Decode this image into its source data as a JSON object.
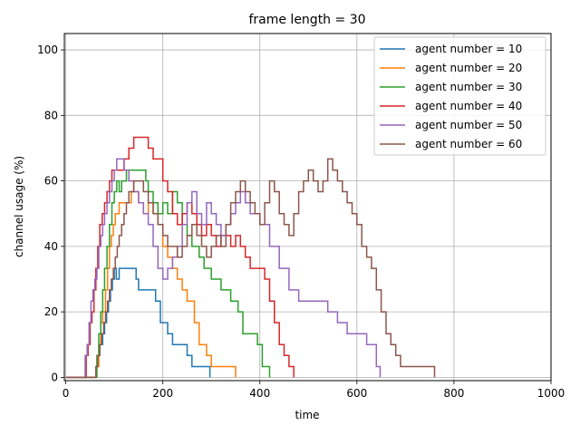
{
  "chart_data": {
    "type": "line",
    "title": "frame length = 30",
    "xlabel": "time",
    "ylabel": "channel usage (%)",
    "xlim": [
      -3,
      1000
    ],
    "ylim": [
      -1,
      105
    ],
    "xticks": [
      0,
      200,
      400,
      600,
      800,
      1000
    ],
    "yticks": [
      0,
      20,
      40,
      60,
      80,
      100
    ],
    "grid": true,
    "legend_position": "top-right",
    "series": [
      {
        "name": "agent number = 10",
        "color": "#1f77b4",
        "x": [
          0,
          58,
          62,
          66,
          70,
          76,
          80,
          84,
          88,
          92,
          96,
          100,
          104,
          110,
          116,
          125,
          145,
          150,
          160,
          185,
          195,
          200,
          210,
          220,
          225,
          250,
          260,
          265,
          270,
          280,
          290,
          295,
          297
        ],
        "y": [
          0,
          0,
          3.3,
          6.7,
          10,
          13.3,
          16.7,
          20,
          23.3,
          26.7,
          30,
          33.3,
          30,
          33.3,
          33.3,
          33.3,
          30,
          26.7,
          26.7,
          23.3,
          16.7,
          16.7,
          13.3,
          10,
          10,
          6.7,
          3.3,
          3.3,
          3.3,
          3.3,
          3.3,
          3.3,
          0
        ]
      },
      {
        "name": "agent number = 20",
        "color": "#ff7f0e",
        "x": [
          0,
          58,
          62,
          68,
          72,
          76,
          82,
          86,
          90,
          94,
          98,
          102,
          106,
          110,
          115,
          125,
          135,
          145,
          150,
          160,
          170,
          180,
          190,
          200,
          210,
          220,
          230,
          240,
          250,
          265,
          275,
          290,
          300,
          330,
          345,
          350
        ],
        "y": [
          0,
          0,
          3.3,
          10,
          16.7,
          20,
          26.7,
          33.3,
          40,
          43.3,
          46.7,
          50,
          50,
          53.3,
          53.3,
          53.3,
          56.7,
          56.7,
          53.3,
          50,
          53.3,
          50,
          46.7,
          40,
          36.7,
          33.3,
          30,
          26.7,
          23.3,
          16.7,
          10,
          6.7,
          3.3,
          3.3,
          3.3,
          0
        ]
      },
      {
        "name": "agent number = 30",
        "color": "#2ca02c",
        "x": [
          0,
          60,
          64,
          68,
          72,
          76,
          80,
          85,
          90,
          95,
          100,
          105,
          110,
          115,
          120,
          125,
          130,
          140,
          150,
          160,
          165,
          170,
          180,
          190,
          200,
          210,
          220,
          230,
          240,
          250,
          260,
          275,
          285,
          300,
          320,
          340,
          355,
          365,
          385,
          395,
          405,
          420
        ],
        "y": [
          0,
          0,
          6.7,
          13.3,
          20,
          26.7,
          33.3,
          40,
          46.7,
          53.3,
          56.7,
          60,
          56.7,
          60,
          60,
          63.3,
          63.3,
          63.3,
          63.3,
          63.3,
          60,
          56.7,
          53.3,
          50,
          53.3,
          50,
          56.7,
          53.3,
          46.7,
          43.3,
          40,
          36.7,
          33.3,
          30,
          26.7,
          23.3,
          20,
          13.3,
          13.3,
          10,
          3.3,
          0
        ]
      },
      {
        "name": "agent number = 40",
        "color": "#d62728",
        "x": [
          0,
          38,
          42,
          46,
          50,
          54,
          58,
          62,
          66,
          70,
          75,
          80,
          85,
          90,
          95,
          100,
          110,
          120,
          130,
          140,
          150,
          160,
          170,
          180,
          190,
          200,
          210,
          220,
          230,
          240,
          250,
          260,
          270,
          280,
          290,
          300,
          310,
          320,
          330,
          340,
          350,
          360,
          370,
          380,
          390,
          400,
          410,
          420,
          430,
          440,
          450,
          460,
          470
        ],
        "y": [
          0,
          0,
          6.7,
          10,
          16.7,
          20,
          26.7,
          33.3,
          40,
          46.7,
          50,
          53.3,
          56.7,
          60,
          63.3,
          63.3,
          63.3,
          66.7,
          70,
          73.3,
          73.3,
          73.3,
          70,
          66.7,
          66.7,
          60,
          56.7,
          50,
          46.7,
          50,
          53.3,
          50,
          46.7,
          43.3,
          46.7,
          43.3,
          40,
          43.3,
          43.3,
          40,
          43.3,
          40,
          36.7,
          33.3,
          33.3,
          33.3,
          30,
          23.3,
          16.7,
          10,
          6.7,
          3.3,
          0
        ]
      },
      {
        "name": "agent number = 50",
        "color": "#9467bd",
        "x": [
          0,
          36,
          40,
          44,
          48,
          52,
          56,
          60,
          64,
          68,
          72,
          76,
          80,
          85,
          90,
          95,
          100,
          105,
          110,
          115,
          120,
          130,
          140,
          150,
          160,
          170,
          180,
          190,
          200,
          210,
          220,
          230,
          240,
          250,
          260,
          270,
          280,
          290,
          300,
          310,
          320,
          330,
          340,
          350,
          360,
          370,
          380,
          400,
          420,
          440,
          460,
          480,
          500,
          520,
          540,
          560,
          580,
          600,
          620,
          640,
          648
        ],
        "y": [
          0,
          0,
          6.7,
          10,
          16.7,
          23.3,
          26.7,
          30,
          33.3,
          40,
          43.3,
          46.7,
          50,
          53.3,
          56.7,
          60,
          63.3,
          66.7,
          66.7,
          66.7,
          63.3,
          60,
          56.7,
          53.3,
          50,
          46.7,
          40,
          33.3,
          30,
          33.3,
          36.7,
          40,
          46.7,
          53.3,
          56.7,
          50,
          46.7,
          53.3,
          50,
          46.7,
          43.3,
          46.7,
          50,
          53.3,
          56.7,
          53.3,
          50,
          46.7,
          40,
          33.3,
          26.7,
          23.3,
          23.3,
          23.3,
          20,
          16.7,
          13.3,
          13.3,
          10,
          3.3,
          0
        ]
      },
      {
        "name": "agent number = 60",
        "color": "#8c564b",
        "x": [
          0,
          58,
          62,
          66,
          70,
          74,
          78,
          82,
          86,
          90,
          94,
          98,
          102,
          106,
          110,
          115,
          120,
          125,
          130,
          140,
          150,
          160,
          170,
          180,
          190,
          200,
          210,
          220,
          230,
          240,
          250,
          260,
          270,
          280,
          290,
          300,
          310,
          320,
          330,
          340,
          350,
          360,
          370,
          380,
          390,
          400,
          410,
          420,
          430,
          440,
          450,
          460,
          470,
          480,
          490,
          500,
          510,
          520,
          530,
          540,
          550,
          560,
          570,
          580,
          590,
          600,
          610,
          620,
          630,
          640,
          650,
          660,
          670,
          680,
          690,
          700,
          720,
          740,
          755,
          760
        ],
        "y": [
          0,
          0,
          3.3,
          6.7,
          10,
          13.3,
          16.7,
          20,
          23.3,
          26.7,
          30,
          33.3,
          36.7,
          40,
          43.3,
          46.7,
          50,
          53.3,
          56.7,
          60,
          60,
          56.7,
          53.3,
          50,
          46.7,
          43.3,
          40,
          40,
          36.7,
          40,
          43.3,
          46.7,
          43.3,
          40,
          36.7,
          40,
          43.3,
          40,
          46.7,
          53.3,
          56.7,
          60,
          56.7,
          53.3,
          50,
          46.7,
          53.3,
          60,
          56.7,
          50,
          46.7,
          43.3,
          50,
          56.7,
          60,
          63.3,
          60,
          56.7,
          60,
          66.7,
          63.3,
          60,
          56.7,
          53.3,
          50,
          46.7,
          40,
          36.7,
          33.3,
          26.7,
          20,
          13.3,
          10,
          6.7,
          3.3,
          3.3,
          3.3,
          3.3,
          3.3,
          0
        ]
      }
    ]
  }
}
